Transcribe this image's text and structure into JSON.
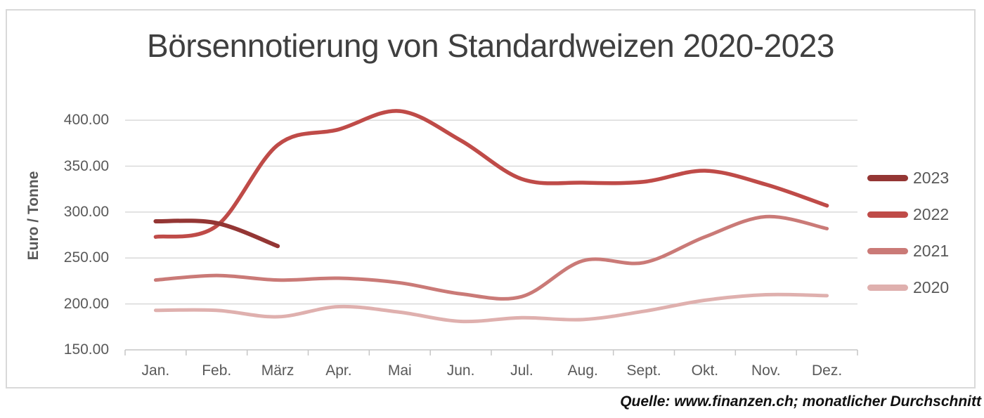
{
  "title": "Börsennotierung von Standardweizen 2020-2023",
  "source_note": "Quelle: www.finanzen.ch; monatlicher Durchschnitt",
  "colors": {
    "title_text": "#3F3F3F",
    "axis_text": "#595959",
    "gridline": "#D9D9D9",
    "axis_line": "#C6C6C6",
    "frame_border": "#D9D9D9",
    "background": "#FFFFFF"
  },
  "chart_data": {
    "type": "line",
    "smooth": true,
    "title": "Börsennotierung von Standardweizen 2020-2023",
    "ylabel": "Euro / Tonne",
    "xlabel": "",
    "categories": [
      "Jan.",
      "Feb.",
      "März",
      "Apr.",
      "Mai",
      "Jun.",
      "Jul.",
      "Aug.",
      "Sept.",
      "Okt.",
      "Nov.",
      "Dez."
    ],
    "y_ticks": [
      "400.00",
      "350.00",
      "300.00",
      "250.00",
      "200.00",
      "150.00"
    ],
    "ylim": [
      150,
      420
    ],
    "grid": true,
    "legend_position": "right",
    "series": [
      {
        "name": "2023",
        "color": "#943634",
        "values": [
          290,
          288,
          263
        ]
      },
      {
        "name": "2022",
        "color": "#BF4B48",
        "values": [
          273,
          285,
          373,
          390,
          410,
          378,
          336,
          332,
          333,
          345,
          330,
          307
        ]
      },
      {
        "name": "2021",
        "color": "#CA7A77",
        "values": [
          226,
          231,
          226,
          228,
          223,
          211,
          208,
          247,
          245,
          273,
          295,
          282
        ]
      },
      {
        "name": "2020",
        "color": "#DFB0AE",
        "values": [
          193,
          193,
          186,
          197,
          191,
          181,
          185,
          183,
          192,
          204,
          210,
          209
        ]
      }
    ],
    "source": "Quelle: www.finanzen.ch; monatlicher Durchschnitt"
  }
}
